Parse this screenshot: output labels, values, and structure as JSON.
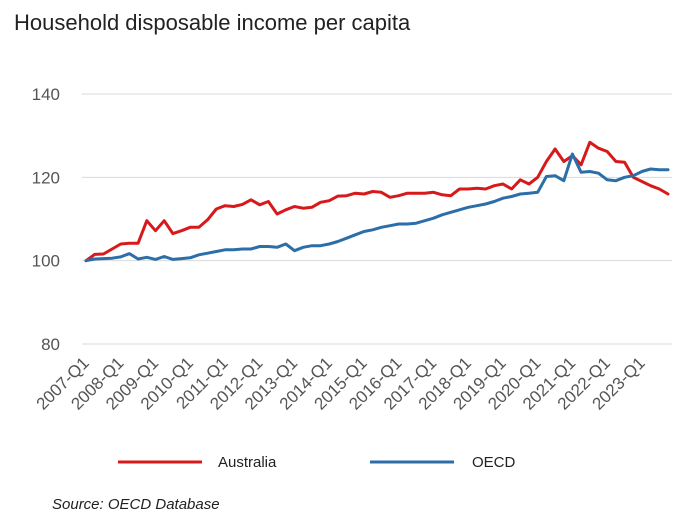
{
  "chart_data": {
    "type": "line",
    "title": "Household disposable income per capita",
    "source": "Source: OECD Database",
    "xlabel": "",
    "ylabel": "",
    "ylim": [
      80,
      140
    ],
    "y_ticks": [
      80,
      100,
      120,
      140
    ],
    "x_tick_labels": [
      "2007-Q1",
      "2008-Q1",
      "2009-Q1",
      "2010-Q1",
      "2011-Q1",
      "2012-Q1",
      "2013-Q1",
      "2014-Q1",
      "2015-Q1",
      "2016-Q1",
      "2017-Q1",
      "2018-Q1",
      "2019-Q1",
      "2020-Q1",
      "2021-Q1",
      "2022-Q1",
      "2023-Q1"
    ],
    "x": [
      "2007-Q1",
      "2007-Q2",
      "2007-Q3",
      "2007-Q4",
      "2008-Q1",
      "2008-Q2",
      "2008-Q3",
      "2008-Q4",
      "2009-Q1",
      "2009-Q2",
      "2009-Q3",
      "2009-Q4",
      "2010-Q1",
      "2010-Q2",
      "2010-Q3",
      "2010-Q4",
      "2011-Q1",
      "2011-Q2",
      "2011-Q3",
      "2011-Q4",
      "2012-Q1",
      "2012-Q2",
      "2012-Q3",
      "2012-Q4",
      "2013-Q1",
      "2013-Q2",
      "2013-Q3",
      "2013-Q4",
      "2014-Q1",
      "2014-Q2",
      "2014-Q3",
      "2014-Q4",
      "2015-Q1",
      "2015-Q2",
      "2015-Q3",
      "2015-Q4",
      "2016-Q1",
      "2016-Q2",
      "2016-Q3",
      "2016-Q4",
      "2017-Q1",
      "2017-Q2",
      "2017-Q3",
      "2017-Q4",
      "2018-Q1",
      "2018-Q2",
      "2018-Q3",
      "2018-Q4",
      "2019-Q1",
      "2019-Q2",
      "2019-Q3",
      "2019-Q4",
      "2020-Q1",
      "2020-Q2",
      "2020-Q3",
      "2020-Q4",
      "2021-Q1",
      "2021-Q2",
      "2021-Q3",
      "2021-Q4",
      "2022-Q1",
      "2022-Q2",
      "2022-Q3",
      "2022-Q4",
      "2023-Q1",
      "2023-Q2",
      "2023-Q3",
      "2023-Q4"
    ],
    "series": [
      {
        "name": "Australia",
        "color": "#d7191c",
        "values": [
          100.0,
          101.5,
          101.6,
          102.8,
          104.0,
          104.2,
          104.2,
          109.6,
          107.2,
          109.6,
          106.5,
          107.2,
          108.0,
          108.0,
          109.8,
          112.4,
          113.2,
          113.0,
          113.5,
          114.6,
          113.4,
          114.2,
          111.2,
          112.2,
          113.0,
          112.6,
          112.8,
          114.0,
          114.4,
          115.5,
          115.6,
          116.2,
          116.0,
          116.6,
          116.4,
          115.2,
          115.6,
          116.2,
          116.2,
          116.2,
          116.4,
          115.8,
          115.6,
          117.2,
          117.2,
          117.4,
          117.2,
          118.0,
          118.4,
          117.2,
          119.4,
          118.4,
          120.0,
          123.8,
          126.8,
          123.8,
          125.2,
          123.0,
          128.4,
          127.0,
          126.2,
          123.8,
          123.6,
          120.0,
          119.0,
          118.0,
          117.2,
          116.0
        ]
      },
      {
        "name": "OECD",
        "color": "#2b6ea8",
        "values": [
          100.0,
          100.4,
          100.5,
          100.6,
          100.9,
          101.7,
          100.4,
          100.8,
          100.3,
          101.0,
          100.3,
          100.5,
          100.7,
          101.4,
          101.8,
          102.2,
          102.6,
          102.6,
          102.8,
          102.8,
          103.4,
          103.4,
          103.2,
          104.0,
          102.4,
          103.2,
          103.6,
          103.6,
          104.0,
          104.6,
          105.4,
          106.2,
          107.0,
          107.4,
          108.0,
          108.4,
          108.8,
          108.8,
          109.0,
          109.6,
          110.2,
          111.0,
          111.6,
          112.2,
          112.8,
          113.2,
          113.6,
          114.2,
          115.0,
          115.4,
          116.0,
          116.2,
          116.4,
          120.2,
          120.4,
          119.2,
          125.6,
          121.2,
          121.4,
          121.0,
          119.4,
          119.2,
          120.0,
          120.4,
          121.4,
          122.0,
          121.8,
          121.8
        ]
      }
    ],
    "grid": true,
    "legend": "bottom"
  }
}
